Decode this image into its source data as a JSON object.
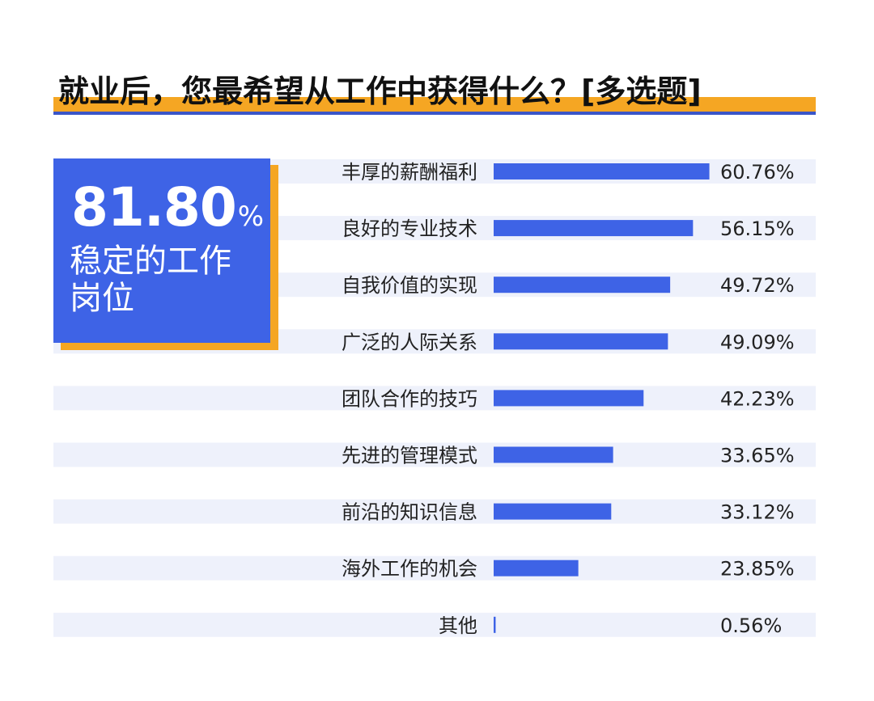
{
  "title": "就业后，您最希望从工作中获得什么？[多选题]",
  "highlight": {
    "value": "81.80",
    "unit": "%",
    "label": "稳定的工作岗位"
  },
  "colors": {
    "accent_blue": "#3e63e6",
    "accent_orange": "#f5a623",
    "row_bg": "#eef1fb"
  },
  "chart_data": {
    "type": "bar",
    "orientation": "horizontal",
    "categories": [
      "丰厚的薪酬福利",
      "良好的专业技术",
      "自我价值的实现",
      "广泛的人际关系",
      "团队合作的技巧",
      "先进的管理模式",
      "前沿的知识信息",
      "海外工作的机会",
      "其他"
    ],
    "values": [
      60.76,
      56.15,
      49.72,
      49.09,
      42.23,
      33.65,
      33.12,
      23.85,
      0.56
    ],
    "value_labels": [
      "60.76%",
      "56.15%",
      "49.72%",
      "49.09%",
      "42.23%",
      "33.65%",
      "33.12%",
      "23.85%",
      "0.56%"
    ],
    "xlim": [
      0,
      62
    ]
  }
}
